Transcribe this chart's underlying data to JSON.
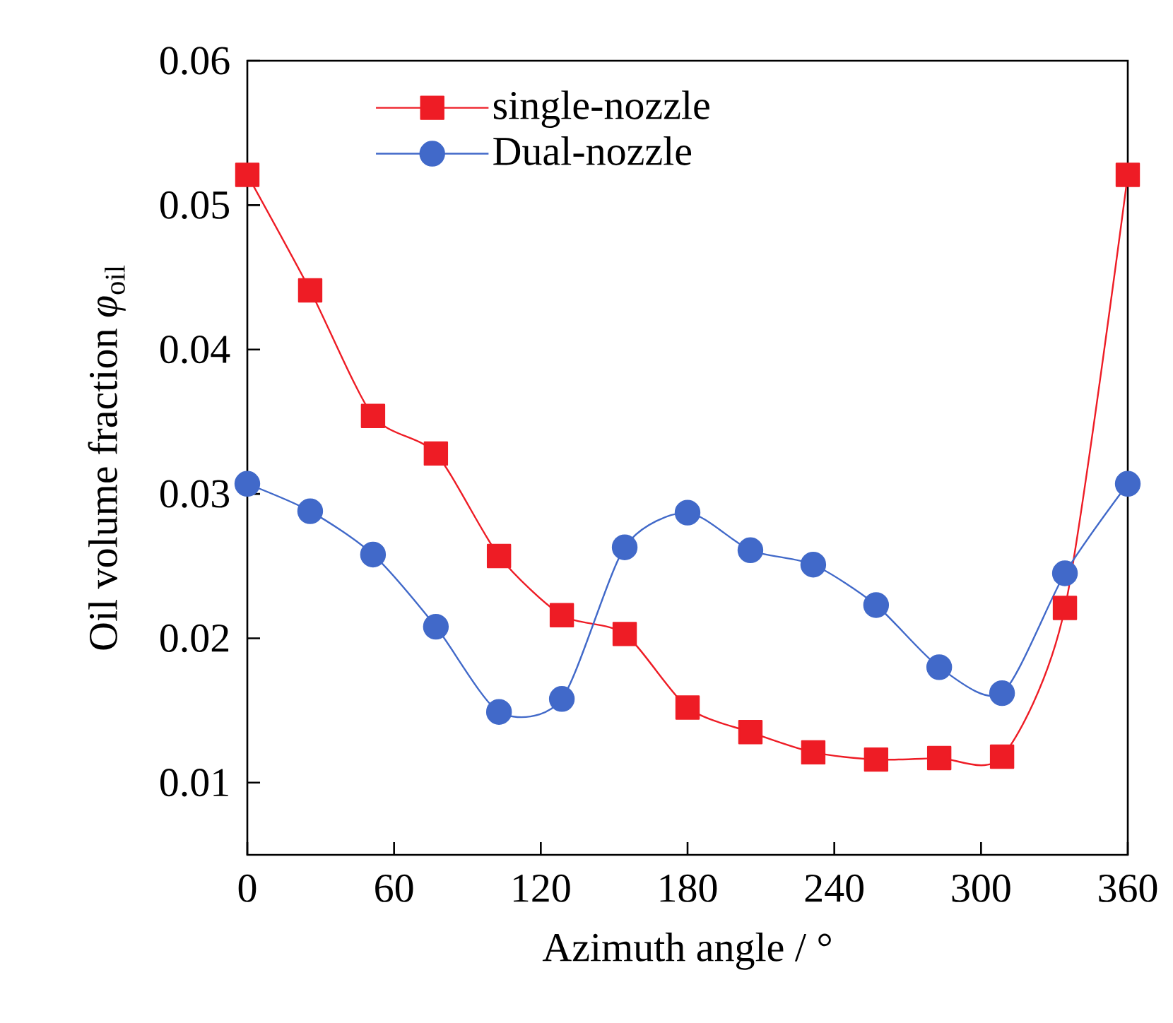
{
  "chart_data": {
    "type": "line",
    "xlabel": "Azimuth angle / °",
    "ylabel": "Oil volume fraction *φ*$_{oil}$",
    "x": [
      0,
      25.7,
      51.4,
      77.1,
      102.9,
      128.6,
      154.3,
      180,
      205.7,
      231.4,
      257.1,
      282.9,
      308.6,
      334.3,
      360
    ],
    "series": [
      {
        "name": "single-nozzle",
        "color": "#ee1c25",
        "marker": "square",
        "values": [
          0.0521,
          0.0441,
          0.0354,
          0.0328,
          0.0257,
          0.0216,
          0.0203,
          0.0152,
          0.0135,
          0.0121,
          0.0116,
          0.0117,
          0.0118,
          0.0221,
          0.0521
        ]
      },
      {
        "name": "Dual-nozzle",
        "color": "#4169c9",
        "marker": "circle",
        "values": [
          0.0307,
          0.0288,
          0.0258,
          0.0208,
          0.0149,
          0.0158,
          0.0263,
          0.0287,
          0.0261,
          0.0251,
          0.0223,
          0.018,
          0.0162,
          0.0245,
          0.0307
        ]
      }
    ],
    "xlim": [
      0,
      360
    ],
    "xticks": [
      0,
      60,
      120,
      180,
      240,
      300,
      360
    ],
    "ylim": [
      0.005,
      0.06
    ],
    "yticks": [
      {
        "value": 0.01,
        "label": "0.01"
      },
      {
        "value": 0.02,
        "label": "0.02"
      },
      {
        "value": 0.03,
        "label": "0.03"
      },
      {
        "value": 0.04,
        "label": "0.04"
      },
      {
        "value": 0.05,
        "label": "0.05"
      },
      {
        "value": 0.06,
        "label": "0.06"
      }
    ],
    "grid": false,
    "legend": "top left",
    "line_style": "solid"
  }
}
